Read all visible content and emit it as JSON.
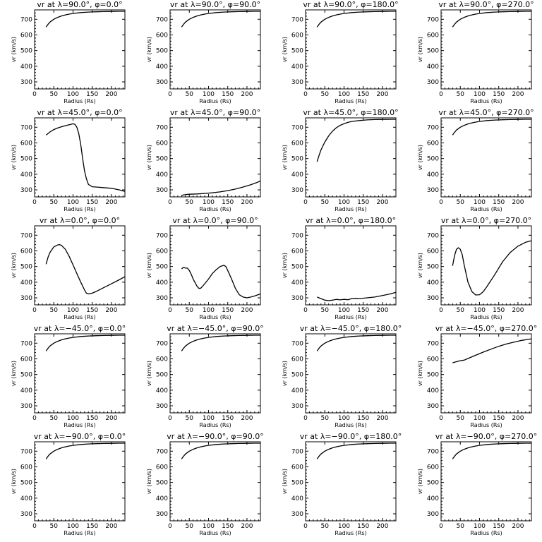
{
  "figure": {
    "background": "#ffffff",
    "line_color": "#000000"
  },
  "chart_data": [
    {
      "type": "line",
      "title": "vr at λ=90.0°, φ=0.0°",
      "xlabel": "Radius (Rs)",
      "ylabel": "vr (km/s)",
      "xlim": [
        0,
        235
      ],
      "ylim": [
        255,
        760
      ],
      "xticks": [
        "0",
        "50",
        "100",
        "150",
        "200"
      ],
      "yticks": [
        "300",
        "400",
        "500",
        "600",
        "700"
      ],
      "x": [
        30,
        35,
        40,
        50,
        60,
        70,
        80,
        90,
        100,
        120,
        140,
        160,
        180,
        200,
        220,
        235
      ],
      "y": [
        650,
        668,
        682,
        700,
        712,
        721,
        728,
        733,
        737,
        743,
        746,
        748,
        749,
        750,
        751,
        751
      ]
    },
    {
      "type": "line",
      "title": "vr at λ=90.0°, φ=90.0°",
      "xlabel": "Radius (Rs)",
      "ylabel": "vr (km/s)",
      "xlim": [
        0,
        235
      ],
      "ylim": [
        255,
        760
      ],
      "xticks": [
        "0",
        "50",
        "100",
        "150",
        "200"
      ],
      "yticks": [
        "300",
        "400",
        "500",
        "600",
        "700"
      ],
      "x": [
        30,
        35,
        40,
        50,
        60,
        70,
        80,
        90,
        100,
        120,
        140,
        160,
        180,
        200,
        220,
        235
      ],
      "y": [
        650,
        668,
        682,
        700,
        712,
        721,
        728,
        733,
        737,
        743,
        746,
        748,
        749,
        750,
        751,
        751
      ]
    },
    {
      "type": "line",
      "title": "vr at λ=90.0°, φ=180.0°",
      "xlabel": "Radius (Rs)",
      "ylabel": "vr (km/s)",
      "xlim": [
        0,
        235
      ],
      "ylim": [
        255,
        760
      ],
      "xticks": [
        "0",
        "50",
        "100",
        "150",
        "200"
      ],
      "yticks": [
        "300",
        "400",
        "500",
        "600",
        "700"
      ],
      "x": [
        30,
        35,
        40,
        50,
        60,
        70,
        80,
        90,
        100,
        120,
        140,
        160,
        180,
        200,
        220,
        235
      ],
      "y": [
        650,
        668,
        682,
        700,
        712,
        721,
        728,
        733,
        737,
        743,
        746,
        748,
        749,
        750,
        751,
        751
      ]
    },
    {
      "type": "line",
      "title": "vr at λ=90.0°, φ=270.0°",
      "xlabel": "Radius (Rs)",
      "ylabel": "vr (km/s)",
      "xlim": [
        0,
        235
      ],
      "ylim": [
        255,
        760
      ],
      "xticks": [
        "0",
        "50",
        "100",
        "150",
        "200"
      ],
      "yticks": [
        "300",
        "400",
        "500",
        "600",
        "700"
      ],
      "x": [
        30,
        35,
        40,
        50,
        60,
        70,
        80,
        90,
        100,
        120,
        140,
        160,
        180,
        200,
        220,
        235
      ],
      "y": [
        650,
        668,
        682,
        700,
        712,
        721,
        728,
        733,
        737,
        743,
        746,
        748,
        749,
        750,
        751,
        751
      ]
    },
    {
      "type": "line",
      "title": "vr at λ=45.0°, φ=0.0°",
      "xlabel": "Radius (Rs)",
      "ylabel": "vr (km/s)",
      "xlim": [
        0,
        235
      ],
      "ylim": [
        255,
        760
      ],
      "xticks": [
        "0",
        "50",
        "100",
        "150",
        "200"
      ],
      "yticks": [
        "300",
        "400",
        "500",
        "600",
        "700"
      ],
      "x": [
        30,
        40,
        50,
        60,
        70,
        80,
        90,
        100,
        105,
        110,
        115,
        120,
        125,
        130,
        135,
        140,
        150,
        160,
        175,
        200,
        220,
        235
      ],
      "y": [
        650,
        670,
        685,
        695,
        703,
        710,
        716,
        722,
        718,
        700,
        660,
        590,
        500,
        420,
        370,
        335,
        320,
        318,
        315,
        310,
        300,
        290
      ]
    },
    {
      "type": "line",
      "title": "vr at λ=45.0°, φ=90.0°",
      "xlabel": "Radius (Rs)",
      "ylabel": "vr (km/s)",
      "xlim": [
        0,
        235
      ],
      "ylim": [
        255,
        760
      ],
      "xticks": [
        "0",
        "50",
        "100",
        "150",
        "200"
      ],
      "yticks": [
        "300",
        "400",
        "500",
        "600",
        "700"
      ],
      "x": [
        30,
        40,
        50,
        70,
        90,
        110,
        130,
        150,
        170,
        190,
        210,
        225,
        235
      ],
      "y": [
        265,
        270,
        272,
        274,
        277,
        281,
        287,
        295,
        305,
        318,
        333,
        346,
        357
      ]
    },
    {
      "type": "line",
      "title": "vr at λ=45.0°, φ=180.0°",
      "xlabel": "Radius (Rs)",
      "ylabel": "vr (km/s)",
      "xlim": [
        0,
        235
      ],
      "ylim": [
        255,
        760
      ],
      "xticks": [
        "0",
        "50",
        "100",
        "150",
        "200"
      ],
      "yticks": [
        "300",
        "400",
        "500",
        "600",
        "700"
      ],
      "x": [
        30,
        35,
        40,
        50,
        60,
        70,
        80,
        90,
        100,
        110,
        120,
        140,
        160,
        180,
        200,
        235
      ],
      "y": [
        480,
        520,
        555,
        605,
        645,
        675,
        697,
        712,
        723,
        731,
        737,
        743,
        747,
        749,
        750,
        751
      ]
    },
    {
      "type": "line",
      "title": "vr at λ=45.0°, φ=270.0°",
      "xlabel": "Radius (Rs)",
      "ylabel": "vr (km/s)",
      "xlim": [
        0,
        235
      ],
      "ylim": [
        255,
        760
      ],
      "xticks": [
        "0",
        "50",
        "100",
        "150",
        "200"
      ],
      "yticks": [
        "300",
        "400",
        "500",
        "600",
        "700"
      ],
      "x": [
        30,
        35,
        40,
        50,
        60,
        70,
        80,
        90,
        100,
        120,
        140,
        160,
        180,
        200,
        220,
        235
      ],
      "y": [
        650,
        668,
        682,
        700,
        712,
        721,
        728,
        733,
        737,
        743,
        746,
        748,
        749,
        750,
        751,
        751
      ]
    },
    {
      "type": "line",
      "title": "vr at λ=0.0°, φ=0.0°",
      "xlabel": "Radius (Rs)",
      "ylabel": "vr (km/s)",
      "xlim": [
        0,
        235
      ],
      "ylim": [
        255,
        760
      ],
      "xticks": [
        "0",
        "50",
        "100",
        "150",
        "200"
      ],
      "yticks": [
        "300",
        "400",
        "500",
        "600",
        "700"
      ],
      "x": [
        30,
        35,
        40,
        50,
        60,
        65,
        70,
        80,
        90,
        100,
        110,
        120,
        130,
        135,
        140,
        150,
        160,
        180,
        200,
        220,
        235
      ],
      "y": [
        515,
        560,
        590,
        625,
        638,
        640,
        635,
        610,
        565,
        510,
        455,
        400,
        350,
        330,
        325,
        330,
        340,
        365,
        390,
        415,
        435
      ]
    },
    {
      "type": "line",
      "title": "vr at λ=0.0°, φ=90.0°",
      "xlabel": "Radius (Rs)",
      "ylabel": "vr (km/s)",
      "xlim": [
        0,
        235
      ],
      "ylim": [
        255,
        760
      ],
      "xticks": [
        "0",
        "50",
        "100",
        "150",
        "200"
      ],
      "yticks": [
        "300",
        "400",
        "500",
        "600",
        "700"
      ],
      "x": [
        30,
        35,
        40,
        45,
        50,
        55,
        60,
        70,
        75,
        80,
        85,
        90,
        100,
        110,
        120,
        130,
        140,
        145,
        150,
        160,
        170,
        180,
        190,
        200,
        210,
        220,
        235
      ],
      "y": [
        485,
        495,
        490,
        490,
        475,
        450,
        420,
        375,
        360,
        362,
        375,
        390,
        420,
        455,
        480,
        500,
        508,
        500,
        475,
        420,
        360,
        320,
        305,
        300,
        305,
        312,
        325
      ]
    },
    {
      "type": "line",
      "title": "vr at λ=0.0°, φ=180.0°",
      "xlabel": "Radius (Rs)",
      "ylabel": "vr (km/s)",
      "xlim": [
        0,
        235
      ],
      "ylim": [
        255,
        760
      ],
      "xticks": [
        "0",
        "50",
        "100",
        "150",
        "200"
      ],
      "yticks": [
        "300",
        "400",
        "500",
        "600",
        "700"
      ],
      "x": [
        30,
        40,
        50,
        60,
        70,
        80,
        90,
        100,
        110,
        120,
        130,
        140,
        160,
        180,
        200,
        220,
        235
      ],
      "y": [
        305,
        295,
        285,
        282,
        285,
        290,
        287,
        290,
        288,
        295,
        297,
        295,
        300,
        305,
        315,
        325,
        335
      ]
    },
    {
      "type": "line",
      "title": "vr at λ=0.0°, φ=270.0°",
      "xlabel": "Radius (Rs)",
      "ylabel": "vr (km/s)",
      "xlim": [
        0,
        235
      ],
      "ylim": [
        255,
        760
      ],
      "xticks": [
        "0",
        "50",
        "100",
        "150",
        "200"
      ],
      "yticks": [
        "300",
        "400",
        "500",
        "600",
        "700"
      ],
      "x": [
        30,
        35,
        40,
        45,
        50,
        55,
        60,
        70,
        80,
        90,
        100,
        110,
        120,
        140,
        160,
        180,
        200,
        220,
        235
      ],
      "y": [
        505,
        570,
        610,
        620,
        610,
        575,
        510,
        400,
        340,
        318,
        320,
        340,
        375,
        450,
        530,
        590,
        630,
        655,
        665
      ]
    },
    {
      "type": "line",
      "title": "vr at λ=−45.0°, φ=0.0°",
      "xlabel": "Radius (Rs)",
      "ylabel": "vr (km/s)",
      "xlim": [
        0,
        235
      ],
      "ylim": [
        255,
        760
      ],
      "xticks": [
        "0",
        "50",
        "100",
        "150",
        "200"
      ],
      "yticks": [
        "300",
        "400",
        "500",
        "600",
        "700"
      ],
      "x": [
        30,
        35,
        40,
        50,
        60,
        70,
        80,
        90,
        100,
        120,
        140,
        160,
        180,
        200,
        220,
        235
      ],
      "y": [
        650,
        668,
        682,
        700,
        712,
        721,
        728,
        733,
        737,
        743,
        746,
        748,
        749,
        750,
        751,
        751
      ]
    },
    {
      "type": "line",
      "title": "vr at λ=−45.0°, φ=90.0°",
      "xlabel": "Radius (Rs)",
      "ylabel": "vr (km/s)",
      "xlim": [
        0,
        235
      ],
      "ylim": [
        255,
        760
      ],
      "xticks": [
        "0",
        "50",
        "100",
        "150",
        "200"
      ],
      "yticks": [
        "300",
        "400",
        "500",
        "600",
        "700"
      ],
      "x": [
        30,
        35,
        40,
        50,
        60,
        70,
        80,
        90,
        100,
        120,
        140,
        160,
        180,
        200,
        220,
        235
      ],
      "y": [
        650,
        668,
        682,
        700,
        712,
        721,
        728,
        733,
        737,
        743,
        746,
        748,
        749,
        750,
        751,
        751
      ]
    },
    {
      "type": "line",
      "title": "vr at λ=−45.0°, φ=180.0°",
      "xlabel": "Radius (Rs)",
      "ylabel": "vr (km/s)",
      "xlim": [
        0,
        235
      ],
      "ylim": [
        255,
        760
      ],
      "xticks": [
        "0",
        "50",
        "100",
        "150",
        "200"
      ],
      "yticks": [
        "300",
        "400",
        "500",
        "600",
        "700"
      ],
      "x": [
        30,
        35,
        40,
        50,
        60,
        70,
        80,
        90,
        100,
        120,
        140,
        160,
        180,
        200,
        220,
        235
      ],
      "y": [
        650,
        668,
        682,
        700,
        712,
        721,
        728,
        733,
        737,
        743,
        746,
        748,
        749,
        750,
        751,
        751
      ]
    },
    {
      "type": "line",
      "title": "vr at λ=−45.0°, φ=270.0°",
      "xlabel": "Radius (Rs)",
      "ylabel": "vr (km/s)",
      "xlim": [
        0,
        235
      ],
      "ylim": [
        255,
        760
      ],
      "xticks": [
        "0",
        "50",
        "100",
        "150",
        "200"
      ],
      "yticks": [
        "300",
        "400",
        "500",
        "600",
        "700"
      ],
      "x": [
        30,
        40,
        50,
        60,
        70,
        90,
        110,
        130,
        150,
        170,
        190,
        210,
        225,
        235
      ],
      "y": [
        575,
        582,
        588,
        592,
        602,
        623,
        643,
        662,
        680,
        695,
        707,
        718,
        724,
        728
      ]
    },
    {
      "type": "line",
      "title": "vr at λ=−90.0°, φ=0.0°",
      "xlabel": "Radius (Rs)",
      "ylabel": "vr (km/s)",
      "xlim": [
        0,
        235
      ],
      "ylim": [
        255,
        760
      ],
      "xticks": [
        "0",
        "50",
        "100",
        "150",
        "200"
      ],
      "yticks": [
        "300",
        "400",
        "500",
        "600",
        "700"
      ],
      "x": [
        30,
        35,
        40,
        50,
        60,
        70,
        80,
        90,
        100,
        120,
        140,
        160,
        180,
        200,
        220,
        235
      ],
      "y": [
        650,
        668,
        682,
        700,
        712,
        721,
        728,
        733,
        737,
        743,
        746,
        748,
        749,
        750,
        751,
        751
      ]
    },
    {
      "type": "line",
      "title": "vr at λ=−90.0°, φ=90.0°",
      "xlabel": "Radius (Rs)",
      "ylabel": "vr (km/s)",
      "xlim": [
        0,
        235
      ],
      "ylim": [
        255,
        760
      ],
      "xticks": [
        "0",
        "50",
        "100",
        "150",
        "200"
      ],
      "yticks": [
        "300",
        "400",
        "500",
        "600",
        "700"
      ],
      "x": [
        30,
        35,
        40,
        50,
        60,
        70,
        80,
        90,
        100,
        120,
        140,
        160,
        180,
        200,
        220,
        235
      ],
      "y": [
        650,
        668,
        682,
        700,
        712,
        721,
        728,
        733,
        737,
        743,
        746,
        748,
        749,
        750,
        751,
        751
      ]
    },
    {
      "type": "line",
      "title": "vr at λ=−90.0°, φ=180.0°",
      "xlabel": "Radius (Rs)",
      "ylabel": "vr (km/s)",
      "xlim": [
        0,
        235
      ],
      "ylim": [
        255,
        760
      ],
      "xticks": [
        "0",
        "50",
        "100",
        "150",
        "200"
      ],
      "yticks": [
        "300",
        "400",
        "500",
        "600",
        "700"
      ],
      "x": [
        30,
        35,
        40,
        50,
        60,
        70,
        80,
        90,
        100,
        120,
        140,
        160,
        180,
        200,
        220,
        235
      ],
      "y": [
        650,
        668,
        682,
        700,
        712,
        721,
        728,
        733,
        737,
        743,
        746,
        748,
        749,
        750,
        751,
        751
      ]
    },
    {
      "type": "line",
      "title": "vr at λ=−90.0°, φ=270.0°",
      "xlabel": "Radius (Rs)",
      "ylabel": "vr (km/s)",
      "xlim": [
        0,
        235
      ],
      "ylim": [
        255,
        760
      ],
      "xticks": [
        "0",
        "50",
        "100",
        "150",
        "200"
      ],
      "yticks": [
        "300",
        "400",
        "500",
        "600",
        "700"
      ],
      "x": [
        30,
        35,
        40,
        50,
        60,
        70,
        80,
        90,
        100,
        120,
        140,
        160,
        180,
        200,
        220,
        235
      ],
      "y": [
        650,
        668,
        682,
        700,
        712,
        721,
        728,
        733,
        737,
        743,
        746,
        748,
        749,
        750,
        751,
        751
      ]
    }
  ]
}
